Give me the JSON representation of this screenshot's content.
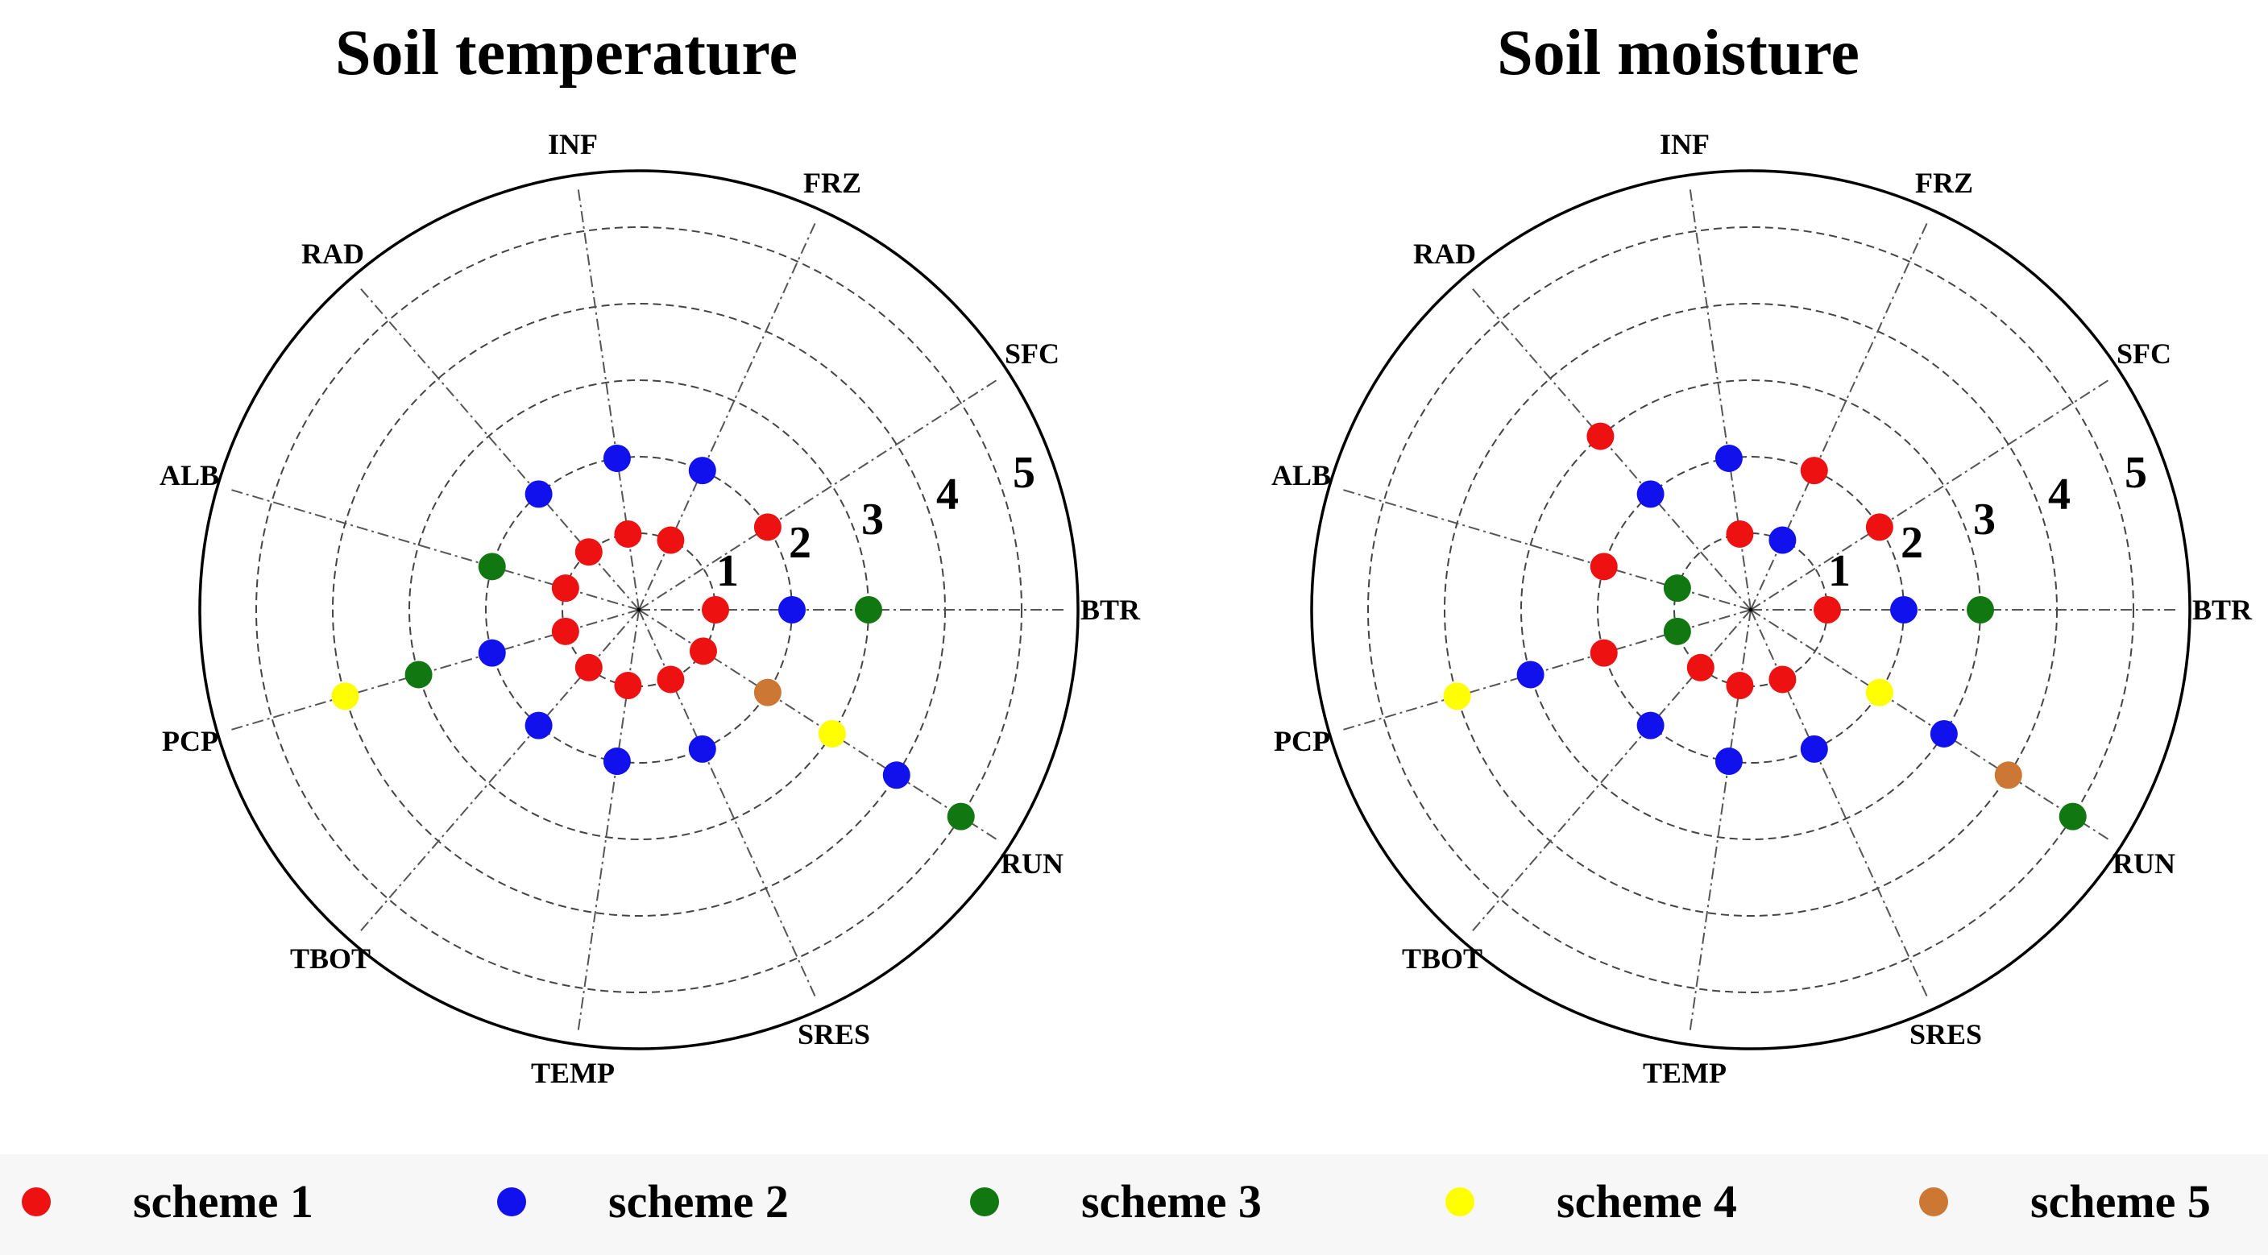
{
  "chart_data": [
    {
      "type": "radar",
      "title": "Soil temperature",
      "axes": [
        "BTR",
        "SFC",
        "FRZ",
        "INF",
        "RAD",
        "ALB",
        "PCP",
        "TBOT",
        "TEMP",
        "SRES",
        "RUN"
      ],
      "ring_labels": [
        "1",
        "2",
        "3",
        "4",
        "5"
      ],
      "rlim": [
        0,
        5.5
      ],
      "points": [
        {
          "axis": "BTR",
          "scheme": 1,
          "r": 1
        },
        {
          "axis": "BTR",
          "scheme": 2,
          "r": 2
        },
        {
          "axis": "BTR",
          "scheme": 3,
          "r": 3
        },
        {
          "axis": "SFC",
          "scheme": 1,
          "r": 2
        },
        {
          "axis": "FRZ",
          "scheme": 1,
          "r": 1
        },
        {
          "axis": "FRZ",
          "scheme": 2,
          "r": 2
        },
        {
          "axis": "INF",
          "scheme": 1,
          "r": 1
        },
        {
          "axis": "INF",
          "scheme": 2,
          "r": 2
        },
        {
          "axis": "RAD",
          "scheme": 1,
          "r": 1
        },
        {
          "axis": "RAD",
          "scheme": 2,
          "r": 2
        },
        {
          "axis": "ALB",
          "scheme": 1,
          "r": 1
        },
        {
          "axis": "ALB",
          "scheme": 3,
          "r": 2
        },
        {
          "axis": "PCP",
          "scheme": 1,
          "r": 1
        },
        {
          "axis": "PCP",
          "scheme": 2,
          "r": 2
        },
        {
          "axis": "PCP",
          "scheme": 3,
          "r": 3
        },
        {
          "axis": "PCP",
          "scheme": 4,
          "r": 4
        },
        {
          "axis": "TBOT",
          "scheme": 1,
          "r": 1
        },
        {
          "axis": "TBOT",
          "scheme": 2,
          "r": 2
        },
        {
          "axis": "TEMP",
          "scheme": 1,
          "r": 1
        },
        {
          "axis": "TEMP",
          "scheme": 2,
          "r": 2
        },
        {
          "axis": "SRES",
          "scheme": 1,
          "r": 1
        },
        {
          "axis": "SRES",
          "scheme": 2,
          "r": 2
        },
        {
          "axis": "RUN",
          "scheme": 1,
          "r": 1
        },
        {
          "axis": "RUN",
          "scheme": 5,
          "r": 2
        },
        {
          "axis": "RUN",
          "scheme": 4,
          "r": 3
        },
        {
          "axis": "RUN",
          "scheme": 2,
          "r": 4
        },
        {
          "axis": "RUN",
          "scheme": 3,
          "r": 5
        }
      ]
    },
    {
      "type": "radar",
      "title": "Soil moisture",
      "axes": [
        "BTR",
        "SFC",
        "FRZ",
        "INF",
        "RAD",
        "ALB",
        "PCP",
        "TBOT",
        "TEMP",
        "SRES",
        "RUN"
      ],
      "ring_labels": [
        "1",
        "2",
        "3",
        "4",
        "5"
      ],
      "rlim": [
        0,
        5.5
      ],
      "points": [
        {
          "axis": "BTR",
          "scheme": 1,
          "r": 1
        },
        {
          "axis": "BTR",
          "scheme": 2,
          "r": 2
        },
        {
          "axis": "BTR",
          "scheme": 3,
          "r": 3
        },
        {
          "axis": "SFC",
          "scheme": 1,
          "r": 2
        },
        {
          "axis": "FRZ",
          "scheme": 2,
          "r": 1
        },
        {
          "axis": "FRZ",
          "scheme": 1,
          "r": 2
        },
        {
          "axis": "INF",
          "scheme": 1,
          "r": 1
        },
        {
          "axis": "INF",
          "scheme": 2,
          "r": 2
        },
        {
          "axis": "RAD",
          "scheme": 2,
          "r": 2
        },
        {
          "axis": "RAD",
          "scheme": 1,
          "r": 3
        },
        {
          "axis": "ALB",
          "scheme": 3,
          "r": 1
        },
        {
          "axis": "ALB",
          "scheme": 1,
          "r": 2
        },
        {
          "axis": "PCP",
          "scheme": 3,
          "r": 1
        },
        {
          "axis": "PCP",
          "scheme": 1,
          "r": 2
        },
        {
          "axis": "PCP",
          "scheme": 2,
          "r": 3
        },
        {
          "axis": "PCP",
          "scheme": 4,
          "r": 4
        },
        {
          "axis": "TBOT",
          "scheme": 1,
          "r": 1
        },
        {
          "axis": "TBOT",
          "scheme": 2,
          "r": 2
        },
        {
          "axis": "TEMP",
          "scheme": 1,
          "r": 1
        },
        {
          "axis": "TEMP",
          "scheme": 2,
          "r": 2
        },
        {
          "axis": "SRES",
          "scheme": 1,
          "r": 1
        },
        {
          "axis": "SRES",
          "scheme": 2,
          "r": 2
        },
        {
          "axis": "RUN",
          "scheme": 4,
          "r": 2
        },
        {
          "axis": "RUN",
          "scheme": 2,
          "r": 3
        },
        {
          "axis": "RUN",
          "scheme": 5,
          "r": 4
        },
        {
          "axis": "RUN",
          "scheme": 3,
          "r": 5
        }
      ]
    }
  ],
  "legend": [
    {
      "scheme": 1,
      "label": "scheme 1",
      "color": "#ee1111"
    },
    {
      "scheme": 2,
      "label": "scheme 2",
      "color": "#1111ee"
    },
    {
      "scheme": 3,
      "label": "scheme 3",
      "color": "#117711"
    },
    {
      "scheme": 4,
      "label": "scheme 4",
      "color": "#ffff00"
    },
    {
      "scheme": 5,
      "label": "scheme 5",
      "color": "#cc7733"
    }
  ]
}
